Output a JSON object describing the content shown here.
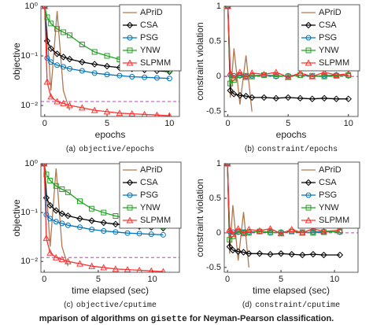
{
  "chart_data": [
    {
      "type": "line",
      "xlabel": "epochs",
      "ylabel": "objective",
      "log_scale": true,
      "legend": "top-right",
      "caption": {
        "label": "(a)",
        "code": "objective/epochs"
      },
      "x": [
        0,
        0.2,
        0.5,
        1,
        1.5,
        2,
        3,
        4,
        5,
        6,
        7,
        8,
        9,
        10
      ],
      "xlim": [
        -0.3,
        10.8
      ],
      "xticks": [
        0,
        5,
        10
      ],
      "ylim": [
        0.006,
        1
      ],
      "yticks": [
        {
          "value": 1,
          "label": "10⁰"
        },
        {
          "value": 0.1,
          "label": "10⁻¹"
        },
        {
          "value": 0.01,
          "label": "10⁻²"
        }
      ],
      "reference_line": 0.012,
      "series": [
        {
          "name": "APriD",
          "color": "#b07850",
          "marker": "none",
          "values": [
            1,
            0.3,
            0.02,
            0.8,
            0.02,
            0.008,
            null,
            null,
            null,
            null,
            null,
            null,
            null,
            null
          ]
        },
        {
          "name": "CSA",
          "color": "#000000",
          "marker": "diamond",
          "values": [
            1,
            0.2,
            0.14,
            0.11,
            0.095,
            0.086,
            0.075,
            0.068,
            0.062,
            0.058,
            0.055,
            0.052,
            0.05,
            0.048
          ]
        },
        {
          "name": "PSG",
          "color": "#0072bd",
          "marker": "circle",
          "values": [
            1,
            0.09,
            0.075,
            0.065,
            0.06,
            0.055,
            0.05,
            0.045,
            0.042,
            0.04,
            0.038,
            0.037,
            0.036,
            0.035
          ]
        },
        {
          "name": "YNW",
          "color": "#22a022",
          "marker": "square",
          "values": [
            1,
            0.6,
            0.45,
            0.35,
            0.3,
            0.26,
            0.17,
            0.12,
            0.1,
            0.085,
            0.075,
            0.065,
            0.058,
            0.052
          ]
        },
        {
          "name": "SLPMM",
          "color": "#ff3030",
          "marker": "triangle",
          "values": [
            1,
            0.03,
            0.015,
            0.012,
            0.011,
            0.01,
            0.009,
            0.008,
            0.0075,
            0.007,
            0.0068,
            0.0066,
            0.0064,
            0.0062
          ]
        }
      ]
    },
    {
      "type": "line",
      "xlabel": "epochs",
      "ylabel": "constraint violation",
      "log_scale": false,
      "legend": "top-right",
      "caption": {
        "label": "(b)",
        "code": "constraint/epochs"
      },
      "x": [
        0,
        0.2,
        0.5,
        1,
        1.5,
        2,
        3,
        4,
        5,
        6,
        7,
        8,
        9,
        10
      ],
      "xlim": [
        -0.3,
        10.8
      ],
      "xticks": [
        0,
        5,
        10
      ],
      "ylim": [
        -0.57,
        1
      ],
      "yticks": [
        -0.5,
        0,
        0.5,
        1
      ],
      "reference_line": 0,
      "series": [
        {
          "name": "APriD",
          "color": "#b07850",
          "marker": "none",
          "values": [
            1,
            -0.3,
            0.4,
            -0.4,
            0.3,
            -0.5,
            null,
            null,
            null,
            null,
            null,
            null,
            null,
            null
          ]
        },
        {
          "name": "CSA",
          "color": "#000000",
          "marker": "diamond",
          "values": [
            1,
            -0.2,
            -0.25,
            -0.27,
            -0.28,
            -0.3,
            -0.3,
            -0.31,
            -0.3,
            -0.31,
            -0.32,
            -0.31,
            -0.32,
            -0.32
          ]
        },
        {
          "name": "PSG",
          "color": "#0072bd",
          "marker": "circle",
          "values": [
            1,
            0.02,
            0.01,
            0.01,
            0,
            0.01,
            0.02,
            0,
            0.01,
            0.02,
            0,
            0.01,
            0.02,
            0.01
          ]
        },
        {
          "name": "YNW",
          "color": "#22a022",
          "marker": "square",
          "values": [
            1,
            -0.1,
            -0.05,
            0.02,
            0.01,
            0,
            0.02,
            0.01,
            0,
            0.02,
            0.01,
            0,
            0.01,
            0.02
          ]
        },
        {
          "name": "SLPMM",
          "color": "#ff3030",
          "marker": "triangle",
          "values": [
            1,
            0.05,
            -0.02,
            0.06,
            -0.01,
            0.05,
            0.03,
            0.06,
            -0.01,
            0.05,
            0,
            0.06,
            0.02,
            0.04
          ]
        }
      ]
    },
    {
      "type": "line",
      "xlabel": "time elapsed (sec)",
      "ylabel": "objective",
      "log_scale": true,
      "legend": "top-right",
      "caption": {
        "label": "(c)",
        "code": "objective/cputime"
      },
      "x": [
        0,
        0.2,
        0.55,
        1.1,
        1.65,
        2.2,
        3.3,
        4.4,
        5.5,
        6.6,
        7.7,
        8.8,
        9.9,
        11
      ],
      "xlim": [
        -0.3,
        12.5
      ],
      "xticks": [
        0,
        5,
        10
      ],
      "ylim": [
        0.006,
        1
      ],
      "yticks": [
        {
          "value": 1,
          "label": "10⁰"
        },
        {
          "value": 0.1,
          "label": "10⁻¹"
        },
        {
          "value": 0.01,
          "label": "10⁻²"
        }
      ],
      "reference_line": 0.012,
      "series": [
        {
          "name": "APriD",
          "color": "#b07850",
          "marker": "none",
          "values": [
            1,
            0.3,
            0.02,
            0.8,
            0.02,
            0.008,
            null,
            null,
            null,
            null,
            null,
            null,
            null,
            null
          ]
        },
        {
          "name": "CSA",
          "color": "#000000",
          "marker": "diamond",
          "values": [
            1,
            0.2,
            0.14,
            0.11,
            0.095,
            0.086,
            0.075,
            0.068,
            0.062,
            0.058,
            0.055,
            0.052,
            0.05,
            0.048
          ]
        },
        {
          "name": "PSG",
          "color": "#0072bd",
          "marker": "circle",
          "values": [
            1,
            0.09,
            0.075,
            0.065,
            0.06,
            0.055,
            0.05,
            0.045,
            0.042,
            0.04,
            0.038,
            0.037,
            0.036,
            0.035
          ]
        },
        {
          "name": "YNW",
          "color": "#22a022",
          "marker": "square",
          "values": [
            1,
            0.6,
            0.45,
            0.35,
            0.3,
            0.26,
            0.17,
            0.12,
            0.1,
            0.085,
            0.075,
            0.065,
            0.058,
            0.052
          ]
        },
        {
          "name": "SLPMM",
          "color": "#ff3030",
          "marker": "triangle",
          "values": [
            1,
            0.03,
            0.015,
            0.012,
            0.011,
            0.01,
            0.009,
            0.008,
            0.0075,
            0.007,
            0.0068,
            0.0066,
            0.0064,
            0.0062
          ]
        }
      ]
    },
    {
      "type": "line",
      "xlabel": "time elapsed (sec)",
      "ylabel": "constraint violation",
      "log_scale": false,
      "legend": "top-right",
      "caption": {
        "label": "(d)",
        "code": "constraint/cputime"
      },
      "x": [
        0,
        0.2,
        0.5,
        1,
        1.5,
        2,
        3,
        4,
        5,
        6,
        7,
        8,
        9,
        10.5
      ],
      "xlim": [
        -0.3,
        12.2
      ],
      "xticks": [
        0,
        5,
        10
      ],
      "ylim": [
        -0.57,
        1
      ],
      "yticks": [
        -0.5,
        0,
        0.5,
        1
      ],
      "reference_line": 0,
      "series": [
        {
          "name": "APriD",
          "color": "#b07850",
          "marker": "none",
          "values": [
            1,
            -0.3,
            0.4,
            -0.4,
            0.3,
            -0.5,
            null,
            null,
            null,
            null,
            null,
            null,
            null,
            null
          ]
        },
        {
          "name": "CSA",
          "color": "#000000",
          "marker": "diamond",
          "values": [
            1,
            -0.2,
            -0.25,
            -0.27,
            -0.28,
            -0.3,
            -0.3,
            -0.31,
            -0.3,
            -0.31,
            -0.32,
            -0.31,
            -0.32,
            -0.32
          ]
        },
        {
          "name": "PSG",
          "color": "#0072bd",
          "marker": "circle",
          "values": [
            1,
            0.02,
            0.01,
            0.01,
            0,
            0.01,
            0.02,
            0,
            0.01,
            0.02,
            0,
            0.01,
            0.02,
            0.01
          ]
        },
        {
          "name": "YNW",
          "color": "#22a022",
          "marker": "square",
          "values": [
            1,
            -0.1,
            -0.05,
            0.02,
            0.01,
            0,
            0.02,
            0.01,
            0,
            0.02,
            0.01,
            0,
            0.01,
            0.02
          ]
        },
        {
          "name": "SLPMM",
          "color": "#ff3030",
          "marker": "triangle",
          "values": [
            1,
            0.05,
            -0.02,
            0.06,
            -0.01,
            0.05,
            0.03,
            0.06,
            -0.01,
            0.05,
            0,
            0.06,
            0.02,
            0.04
          ]
        }
      ]
    }
  ],
  "figure_caption": {
    "before": "mparison of algorithms on ",
    "code": "gisette",
    "after": " for Neyman-Pearson classification."
  }
}
